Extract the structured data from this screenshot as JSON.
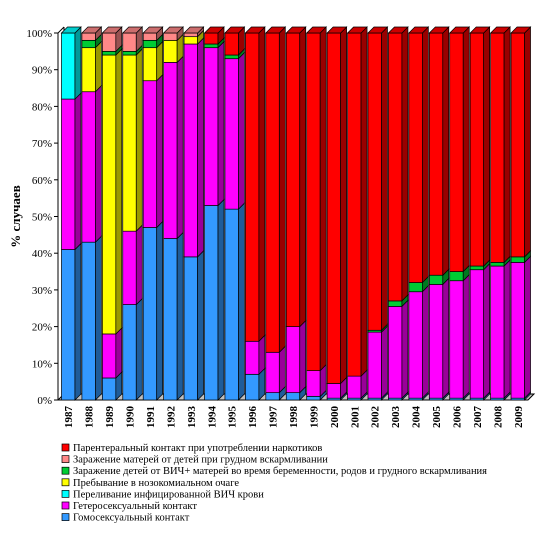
{
  "chart_data": {
    "type": "bar",
    "stacked": true,
    "percent": true,
    "grid": false,
    "ylabel": "% случаев",
    "ylim": [
      0,
      100
    ],
    "yticks": [
      "0%",
      "10%",
      "20%",
      "30%",
      "40%",
      "50%",
      "60%",
      "70%",
      "80%",
      "90%",
      "100%"
    ],
    "legend_position": "bottom",
    "categories": [
      "1987",
      "1988",
      "1989",
      "1990",
      "1991",
      "1992",
      "1993",
      "1994",
      "1995",
      "1996",
      "1997",
      "1998",
      "1999",
      "2000",
      "2001",
      "2002",
      "2003",
      "2004",
      "2005",
      "2006",
      "2007",
      "2008",
      "2009"
    ],
    "series": [
      {
        "name": "Гомосексуальный контакт",
        "color": "#3399ff",
        "values": [
          41,
          43,
          6,
          26,
          47,
          44,
          39,
          53,
          52,
          7,
          2,
          2,
          1,
          0.5,
          0.5,
          0.5,
          0.5,
          0.5,
          0.5,
          0.5,
          0.5,
          0.5,
          0.5
        ]
      },
      {
        "name": "Гетеросексуальный контакт",
        "color": "#ff00ff",
        "values": [
          41,
          41,
          12,
          20,
          40,
          48,
          58,
          43,
          41,
          9,
          11,
          18,
          7,
          4,
          6,
          18,
          25,
          29,
          31,
          32,
          35,
          36,
          37
        ]
      },
      {
        "name": "Переливание инфицированной ВИЧ крови",
        "color": "#00ffff",
        "values": [
          18,
          0,
          0,
          0,
          0,
          0,
          0,
          0,
          0,
          0,
          0,
          0,
          0,
          0,
          0,
          0,
          0,
          0,
          0,
          0,
          0,
          0,
          0
        ]
      },
      {
        "name": "Пребывание в нозокомиальном очаге",
        "color": "#ffff00",
        "values": [
          0,
          12,
          76,
          48,
          9,
          6,
          2,
          0,
          0,
          0,
          0,
          0,
          0,
          0,
          0,
          0,
          0,
          0,
          0,
          0,
          0,
          0,
          0
        ]
      },
      {
        "name": "Заражение детей от ВИЧ+ матерей во время беременности, родов и грудного вскармливания",
        "color": "#00cc33",
        "values": [
          0,
          2,
          1,
          1,
          2,
          0,
          0,
          1,
          1,
          0,
          0,
          0,
          0,
          0,
          0,
          0.5,
          1.5,
          2.5,
          2.5,
          2.5,
          1,
          1,
          1.5
        ]
      },
      {
        "name": "Заражение матерей от детей при грудном вскармливании",
        "color": "#ff8888",
        "values": [
          0,
          2,
          5,
          5,
          2,
          2,
          1,
          0,
          0,
          0,
          0,
          0,
          0,
          0,
          0,
          0,
          0,
          0,
          0,
          0,
          0,
          0,
          0
        ]
      },
      {
        "name": "Парентеральный контакт при употреблении наркотиков",
        "color": "#ff0000",
        "values": [
          0,
          0,
          0,
          0,
          0,
          0,
          0,
          3,
          6,
          84,
          87,
          80,
          92,
          95.5,
          93.5,
          81,
          73,
          68,
          66,
          65,
          63.5,
          62.5,
          61
        ]
      }
    ]
  }
}
